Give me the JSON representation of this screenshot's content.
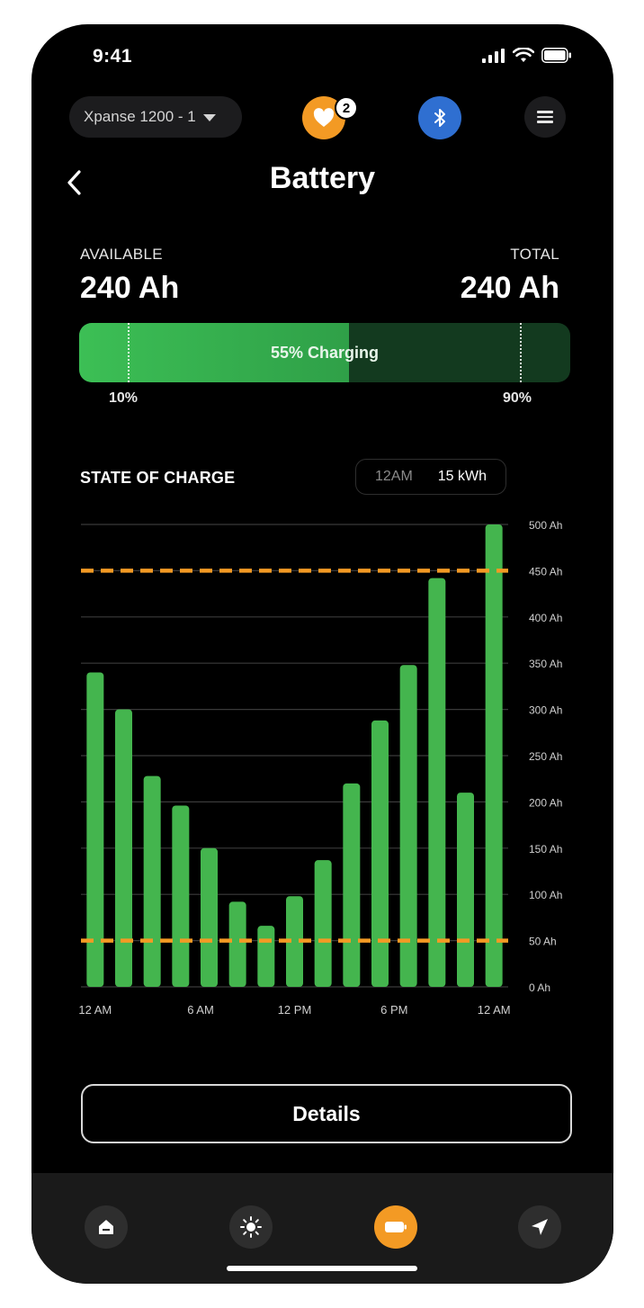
{
  "status": {
    "time": "9:41"
  },
  "topbar": {
    "device_name": "Xpanse 1200 - 1",
    "heart_badge": "2"
  },
  "header": {
    "title": "Battery"
  },
  "capacity": {
    "available_label": "AVAILABLE",
    "available_value": "240 Ah",
    "total_label": "TOTAL",
    "total_value": "240 Ah",
    "bar_text": "55% Charging",
    "charge_fraction": 0.55,
    "low_limit_label": "10%",
    "low_limit_fraction": 0.1,
    "high_limit_label": "90%",
    "high_limit_fraction": 0.9
  },
  "soc": {
    "title": "STATE OF CHARGE",
    "range_a": "12AM",
    "range_b": "15 kWh"
  },
  "chart_data": {
    "type": "bar",
    "title": "STATE OF CHARGE",
    "x_tick_labels": [
      "12 AM",
      "6 AM",
      "12 PM",
      "6 PM",
      "12 AM"
    ],
    "y_tick_labels": [
      "500 Ah",
      "450 Ah",
      "400 Ah",
      "350 Ah",
      "300 Ah",
      "250 Ah",
      "200 Ah",
      "150 Ah",
      "100 Ah",
      "50 Ah",
      "0 Ah"
    ],
    "y_ticks": [
      500,
      450,
      400,
      350,
      300,
      250,
      200,
      150,
      100,
      50,
      0
    ],
    "values": [
      340,
      300,
      228,
      196,
      150,
      92,
      66,
      98,
      137,
      220,
      288,
      348,
      442,
      210,
      500
    ],
    "ylim": [
      0,
      500
    ],
    "reference_lines": [
      450,
      50
    ],
    "grid": true,
    "bar_color": "#44b54e",
    "reference_color": "#f39a24"
  },
  "details": {
    "label": "Details"
  },
  "colors": {
    "accent": "#f39a24",
    "bluetooth": "#2f6fd1",
    "charge": "#3cbf55"
  },
  "tabs": [
    {
      "icon": "home-icon",
      "active": false
    },
    {
      "icon": "sun-icon",
      "active": false
    },
    {
      "icon": "battery-icon",
      "active": true
    },
    {
      "icon": "navigation-icon",
      "active": false
    }
  ]
}
